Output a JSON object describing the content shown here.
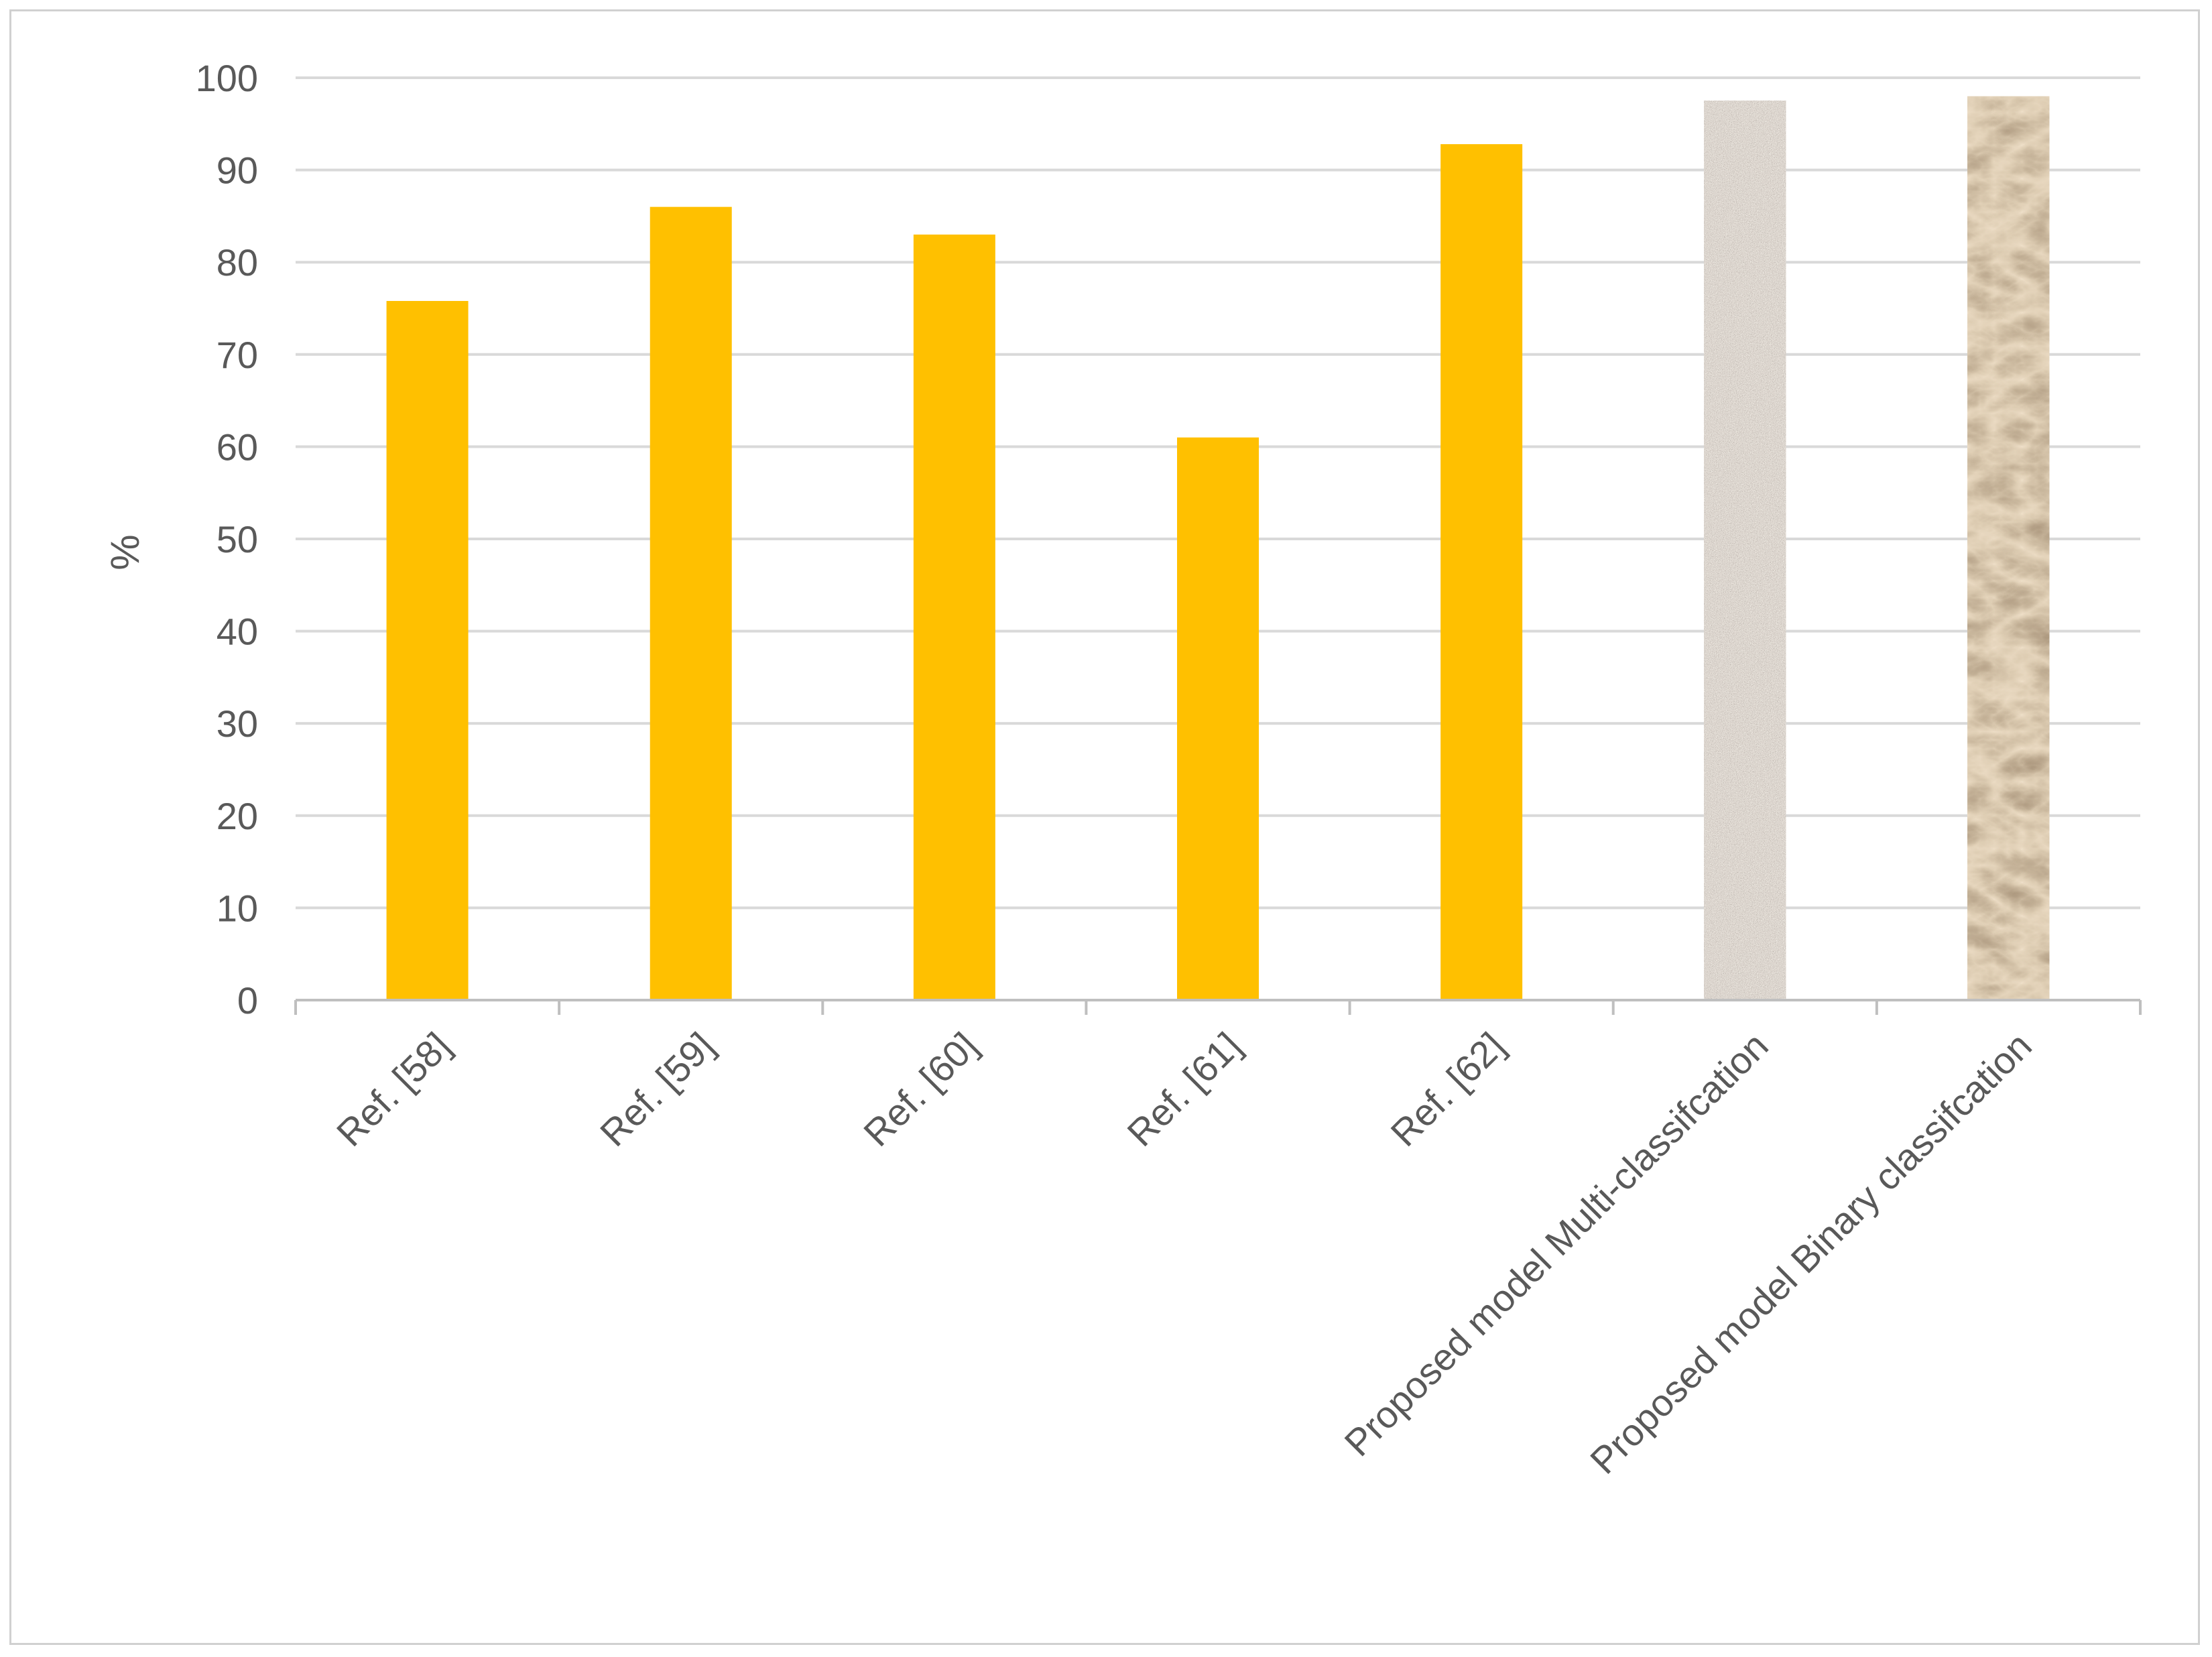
{
  "chart_data": {
    "type": "bar",
    "categories": [
      "Ref.  [58]",
      "Ref. [59]",
      "Ref. [60]",
      "Ref. [61]",
      "Ref. [62]",
      "Proposed model  Multi-classifcation",
      "Proposed model  Binary classifcation"
    ],
    "values": [
      75.8,
      86.0,
      83.0,
      61.0,
      92.8,
      97.5,
      98.0
    ],
    "bar_styles": [
      "solid",
      "solid",
      "solid",
      "solid",
      "solid",
      "granite-texture",
      "sand-texture"
    ],
    "ylabel": "%",
    "ylim": [
      0,
      100
    ],
    "yticks": [
      0,
      10,
      20,
      30,
      40,
      50,
      60,
      70,
      80,
      90,
      100
    ],
    "grid": "horizontal",
    "legend": "none",
    "colors": {
      "bar": "#FFC000",
      "grid": "#d9d9d9",
      "axis": "#bfbfbf",
      "text": "#595959",
      "granite": "#b5aaa0",
      "sand": "#b99a73"
    }
  }
}
